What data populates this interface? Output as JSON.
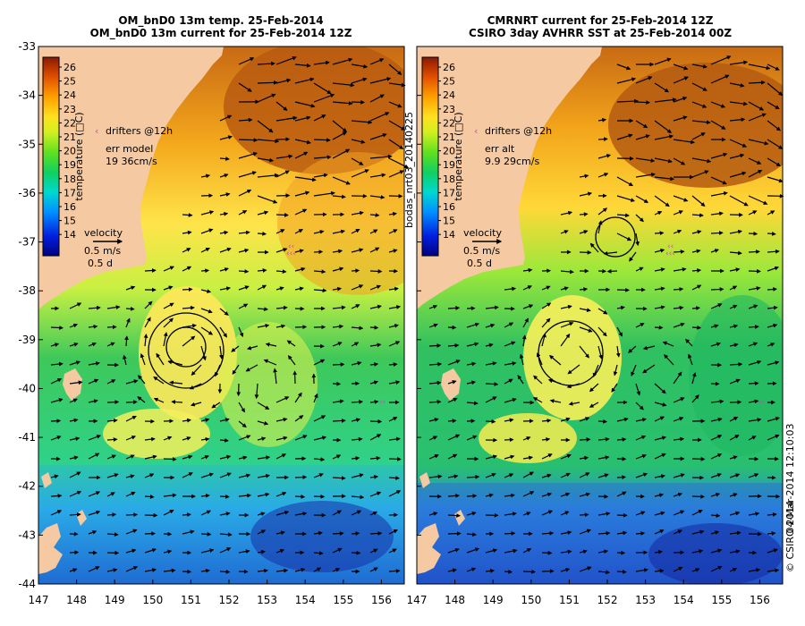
{
  "panels": [
    {
      "id": "model",
      "title_line1": "OM_bnD0 13m temp. 25-Feb-2014",
      "title_line2": "OM_bnD0 13m current for 25-Feb-2014 12Z",
      "drifters_label": "drifters @12h",
      "err_label": "err model",
      "err_value": "19 36cm/s",
      "velocity_label": "velocity",
      "velocity_speed": "0.5 m/s",
      "velocity_time": "0.5 d"
    },
    {
      "id": "obs",
      "title_line1": "CMRNRT current for 25-Feb-2014 12Z",
      "title_line2": "CSIRO 3day AVHRR SST at 25-Feb-2014 00Z",
      "drifters_label": "drifters @12h",
      "err_label": "err alt",
      "err_value": "9.9 29cm/s",
      "velocity_label": "velocity",
      "velocity_speed": "0.5 m/s",
      "velocity_time": "0.5 d"
    }
  ],
  "colorbar": {
    "label": "temperature (□C)",
    "ticks": [
      "26",
      "25",
      "24",
      "23",
      "22",
      "21",
      "20",
      "19",
      "18",
      "17",
      "16",
      "15",
      "14"
    ],
    "min": 13.4,
    "max": 26.6
  },
  "axes": {
    "lat_ticks": [
      "-33",
      "-34",
      "-35",
      "-36",
      "-37",
      "-38",
      "-39",
      "-40",
      "-41",
      "-42",
      "-43",
      "-44"
    ],
    "lon_ticks": [
      "147",
      "148",
      "149",
      "150",
      "151",
      "152",
      "153",
      "154",
      "155",
      "156"
    ]
  },
  "side_label": "bodas_nrt03_20140225",
  "footer_date": "04-Mar-2014 12:10:03",
  "footer_copyright": "© CSIRO 2014",
  "colors": {
    "land": "#f5c9a1",
    "background": "#ffffff",
    "drifter": "#d040d0"
  }
}
